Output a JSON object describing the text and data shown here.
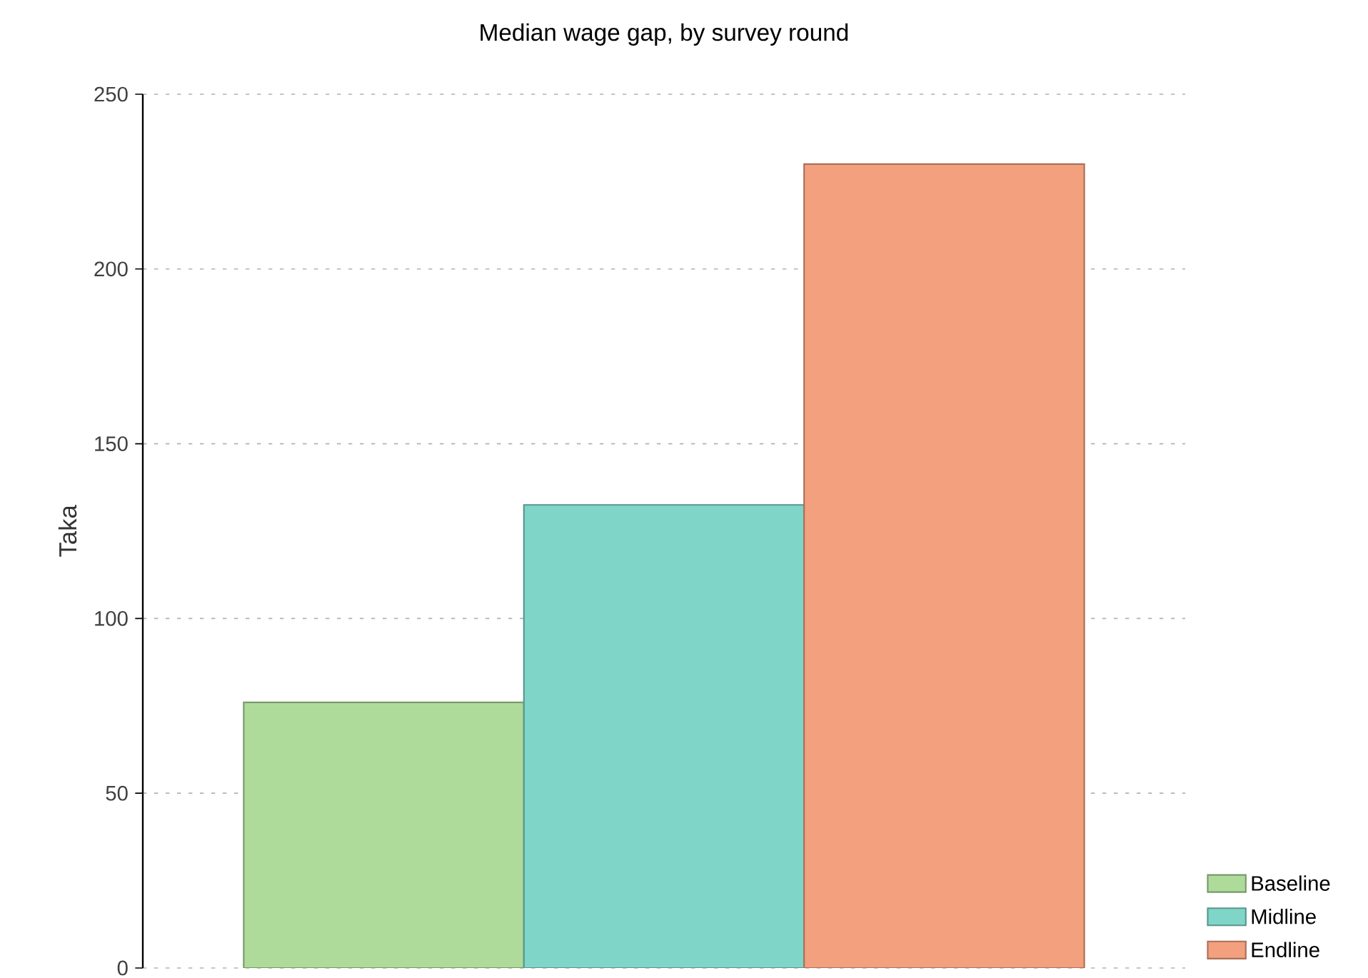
{
  "chart_data": {
    "type": "bar",
    "title": "Median wage gap, by survey round",
    "ylabel": "Taka",
    "categories": [
      null
    ],
    "series": [
      {
        "name": "Baseline",
        "color": "#aedb9a",
        "values": [
          76
        ]
      },
      {
        "name": "Midline",
        "color": "#7fd6c8",
        "values": [
          132.5
        ]
      },
      {
        "name": "Endline",
        "color": "#f3a07f",
        "values": [
          230
        ]
      }
    ],
    "ylim": [
      0,
      250
    ],
    "yticks": [
      0,
      50,
      100,
      150,
      200,
      250
    ],
    "grid": "y",
    "legend": "bottom right"
  }
}
